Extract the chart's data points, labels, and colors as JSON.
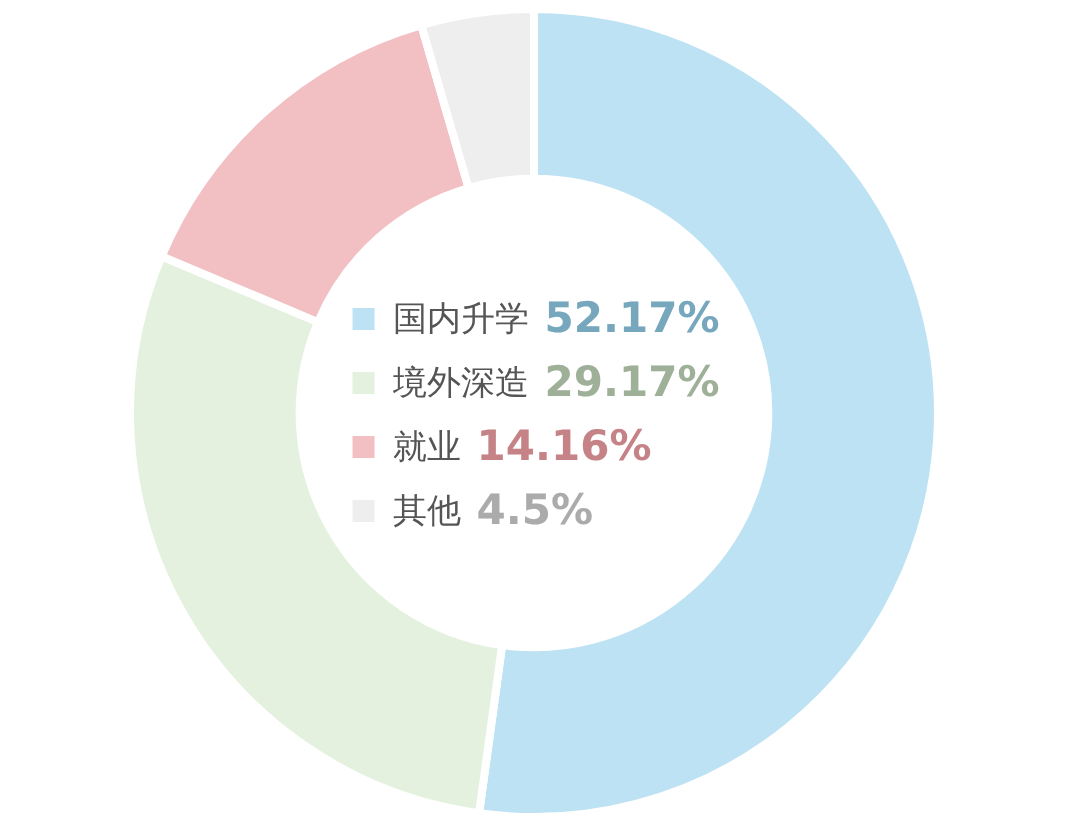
{
  "chart_data": {
    "type": "donut",
    "categories": [
      "国内升学",
      "境外深造",
      "就业",
      "其他"
    ],
    "values": [
      52.17,
      29.17,
      14.16,
      4.5
    ],
    "value_labels": [
      "52.17%",
      "29.17%",
      "14.16%",
      "4.5%"
    ],
    "colors": [
      "#bde2f3",
      "#e4f1df",
      "#f2bfc3",
      "#eeeeee"
    ],
    "legend": "center"
  }
}
